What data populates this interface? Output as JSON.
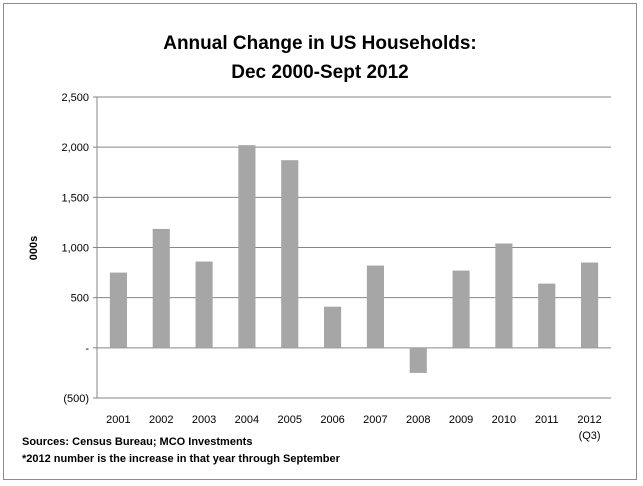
{
  "chart_data": {
    "type": "bar",
    "title": [
      "Annual Change in US Households:",
      "Dec 2000-Sept 2012"
    ],
    "ylabel": "000s",
    "xlabel": "",
    "categories": [
      "2001",
      "2002",
      "2003",
      "2004",
      "2005",
      "2006",
      "2007",
      "2008",
      "2009",
      "2010",
      "2011",
      "2012"
    ],
    "category_sublabels": [
      "",
      "",
      "",
      "",
      "",
      "",
      "",
      "",
      "",
      "",
      "",
      "(Q3)"
    ],
    "values": [
      750,
      1185,
      860,
      2020,
      1870,
      410,
      820,
      -250,
      770,
      1040,
      640,
      850
    ],
    "ylim": [
      -500,
      2500
    ],
    "yticks": [
      -500,
      0,
      500,
      1000,
      1500,
      2000,
      2500
    ],
    "ytick_labels": [
      "(500)",
      "-",
      "500",
      "1,000",
      "1,500",
      "2,000",
      "2,500"
    ],
    "grid": true,
    "bar_color": "#a6a6a6",
    "grid_color": "#868686"
  },
  "notes": [
    "Sources: Census Bureau; MCO Investments",
    "*2012 number is the increase in that year through September"
  ]
}
